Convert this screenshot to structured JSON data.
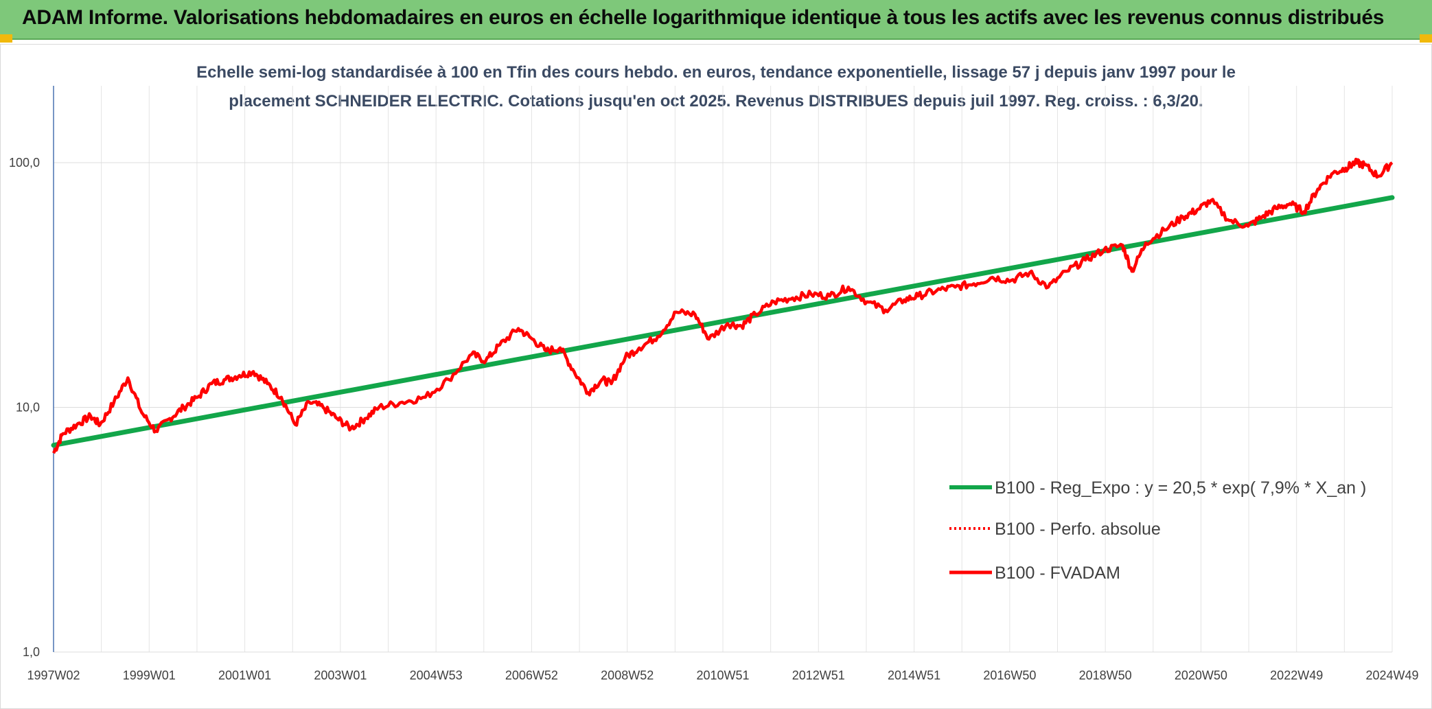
{
  "header": {
    "title": "ADAM Informe. Valorisations hebdomadaires en euros en échelle logarithmique identique à tous les actifs avec les revenus connus distribués"
  },
  "colors": {
    "header_bg": "#7ec87a",
    "accent_corner": "#f1b90c",
    "regression": "#12a64a",
    "fvadam": "#ff0000",
    "perfo": "#ff0000"
  },
  "chart_data": {
    "type": "line",
    "title_line1": "Echelle semi-log standardisée à 100 en Tfin des cours hebdo. en euros, tendance exponentielle, lissage 57 j depuis janv 1997 pour le",
    "title_line2": "placement SCHNEIDER ELECTRIC. Cotations jusqu'en oct 2025. Revenus DISTRIBUES depuis juil 1997. Reg. croiss. : 6,3/20.",
    "y_scale": "log",
    "ylim": [
      1,
      100
    ],
    "y_ticks": [
      "1,0",
      "10,0",
      "100,0"
    ],
    "x_ticks": [
      "1997W02",
      "1999W01",
      "2001W01",
      "2003W01",
      "2004W53",
      "2006W52",
      "2008W52",
      "2010W51",
      "2012W51",
      "2014W51",
      "2016W50",
      "2018W50",
      "2020W50",
      "2022W49",
      "2024W49"
    ],
    "xlim": [
      1997.0,
      2025.8
    ],
    "grid": "vertical and horizontal",
    "legend_position": "right",
    "series": [
      {
        "name": "B100 - Reg_Expo : y = 20,5 * exp( 7,9% *  X_an )",
        "style": "solid-thick",
        "x": [
          1997.0,
          2025.8
        ],
        "values": [
          7.0,
          72.0
        ]
      },
      {
        "name": "B100 - Perfo. absolue",
        "style": "dotted",
        "x": [],
        "values": []
      },
      {
        "name": "B100 - FVADAM",
        "style": "solid",
        "x": [
          1997.0,
          1997.2,
          1997.5,
          1997.8,
          1998.0,
          1998.3,
          1998.6,
          1998.9,
          1999.2,
          1999.5,
          1999.8,
          2000.1,
          2000.4,
          2000.7,
          2001.0,
          2001.3,
          2001.6,
          2001.9,
          2002.2,
          2002.5,
          2002.8,
          2003.1,
          2003.4,
          2003.7,
          2004.0,
          2004.5,
          2005.0,
          2005.5,
          2006.0,
          2006.3,
          2006.6,
          2007.0,
          2007.3,
          2007.6,
          2007.9,
          2008.2,
          2008.5,
          2008.8,
          2009.0,
          2009.3,
          2009.6,
          2010.0,
          2010.4,
          2010.8,
          2011.1,
          2011.5,
          2011.8,
          2012.1,
          2012.5,
          2012.9,
          2013.3,
          2013.7,
          2014.1,
          2014.5,
          2014.9,
          2015.3,
          2015.6,
          2016.0,
          2016.4,
          2016.8,
          2017.2,
          2017.6,
          2018.0,
          2018.4,
          2018.8,
          2019.2,
          2019.6,
          2020.0,
          2020.2,
          2020.5,
          2020.9,
          2021.3,
          2021.6,
          2021.9,
          2022.3,
          2022.7,
          2023.0,
          2023.3,
          2023.6,
          2023.9,
          2024.2,
          2024.5,
          2024.8,
          2025.0,
          2025.2,
          2025.5,
          2025.8
        ],
        "values": [
          6.5,
          7.8,
          8.5,
          9.2,
          8.5,
          10.5,
          13.2,
          9.5,
          8.0,
          9.0,
          10.0,
          11.0,
          12.5,
          13.0,
          13.5,
          14.0,
          12.5,
          11.0,
          8.5,
          10.5,
          10.0,
          9.0,
          8.2,
          9.0,
          10.0,
          10.5,
          11.0,
          13.0,
          16.5,
          15.5,
          18.0,
          21.0,
          19.0,
          17.0,
          17.5,
          14.0,
          11.5,
          13.0,
          12.5,
          16.0,
          17.5,
          19.5,
          24.5,
          24.0,
          19.0,
          22.0,
          21.5,
          24.0,
          27.0,
          28.0,
          29.0,
          28.5,
          31.0,
          27.0,
          25.0,
          27.5,
          28.5,
          30.0,
          31.0,
          32.0,
          34.0,
          33.0,
          35.5,
          31.0,
          36.0,
          40.0,
          44.0,
          46.0,
          36.0,
          47.0,
          53.0,
          60.0,
          64.0,
          70.0,
          58.0,
          55.0,
          60.0,
          65.0,
          68.0,
          63.0,
          78.0,
          90.0,
          95.0,
          100.0,
          98.0,
          88.0,
          100.0
        ]
      }
    ]
  }
}
